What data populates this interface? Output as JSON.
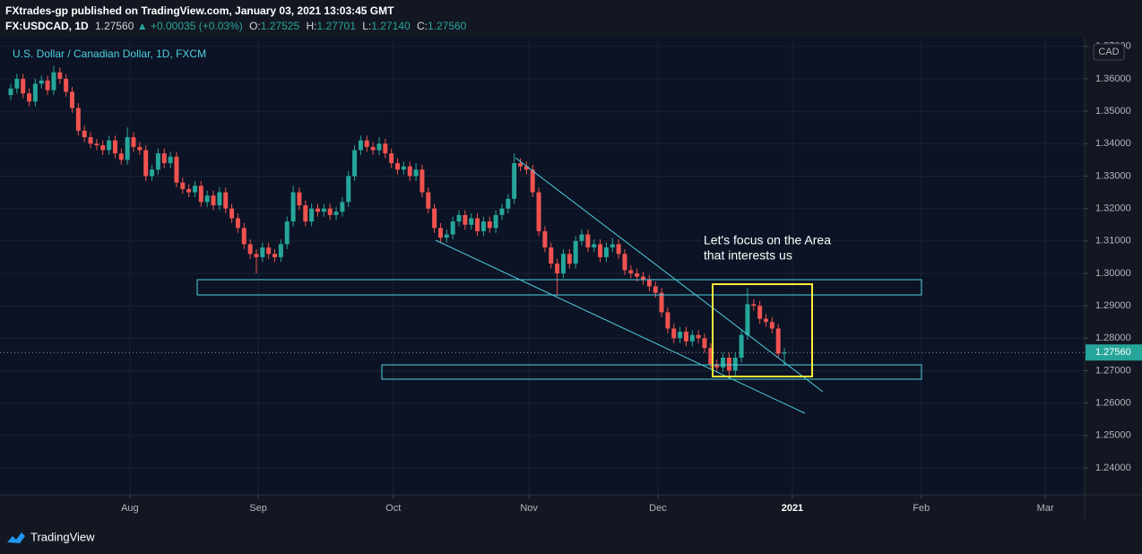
{
  "header": {
    "line1": "FXtrades-gp published on TradingView.com, January 03, 2021 13:03:45 GMT",
    "symbol": "FX:USDCAD, 1D",
    "last": "1.27560",
    "arrow": "▲",
    "change": "+0.00035 (+0.03%)",
    "o_label": "O:",
    "o": "1.27525",
    "h_label": "H:",
    "h": "1.27701",
    "l_label": "L:",
    "l": "1.27140",
    "c_label": "C:",
    "c": "1.27560"
  },
  "chart_data": {
    "type": "candlestick",
    "legend": "U.S. Dollar / Canadian Dollar, 1D, FXCM",
    "currency": "CAD",
    "last_price_label": "1.27560",
    "annotation": [
      "Let's focus on the Area",
      "that interests us"
    ],
    "up_color": "#26a69a",
    "down_color": "#ef5350",
    "xlim": [
      -1.75,
      174.9
    ],
    "xticks": [
      {
        "value": 19.4,
        "label": "Aug"
      },
      {
        "value": 40.3,
        "label": "Sep"
      },
      {
        "value": 62.3,
        "label": "Oct"
      },
      {
        "value": 84.4,
        "label": "Nov"
      },
      {
        "value": 105.4,
        "label": "Dec"
      },
      {
        "value": 127.3,
        "label": "2021"
      },
      {
        "value": 148.3,
        "label": "Feb"
      },
      {
        "value": 168.5,
        "label": "Mar"
      }
    ],
    "ylim": [
      1.2317,
      1.3727
    ],
    "yticks": [
      {
        "value": 1.24,
        "label": "1.24000"
      },
      {
        "value": 1.25,
        "label": "1.25000"
      },
      {
        "value": 1.26,
        "label": "1.26000"
      },
      {
        "value": 1.27,
        "label": "1.27000"
      },
      {
        "value": 1.28,
        "label": "1.28000"
      },
      {
        "value": 1.29,
        "label": "1.29000"
      },
      {
        "value": 1.3,
        "label": "1.30000"
      },
      {
        "value": 1.31,
        "label": "1.31000"
      },
      {
        "value": 1.32,
        "label": "1.32000"
      },
      {
        "value": 1.33,
        "label": "1.33000"
      },
      {
        "value": 1.34,
        "label": "1.34000"
      },
      {
        "value": 1.35,
        "label": "1.35000"
      },
      {
        "value": 1.36,
        "label": "1.36000"
      },
      {
        "value": 1.37,
        "label": "1.37000"
      }
    ],
    "grid": true,
    "candles": [
      [
        1.355,
        1.3585,
        1.3535,
        1.357
      ],
      [
        1.357,
        1.3615,
        1.3555,
        1.36
      ],
      [
        1.36,
        1.3615,
        1.354,
        1.3555
      ],
      [
        1.3555,
        1.357,
        1.3515,
        1.353
      ],
      [
        1.353,
        1.36,
        1.3515,
        1.3585
      ],
      [
        1.3585,
        1.361,
        1.357,
        1.3595
      ],
      [
        1.3595,
        1.361,
        1.355,
        1.3565
      ],
      [
        1.3565,
        1.364,
        1.355,
        1.362
      ],
      [
        1.362,
        1.3635,
        1.3585,
        1.36
      ],
      [
        1.36,
        1.3615,
        1.3545,
        1.356
      ],
      [
        1.356,
        1.3575,
        1.3495,
        1.351
      ],
      [
        1.351,
        1.3525,
        1.3425,
        1.344
      ],
      [
        1.344,
        1.3455,
        1.3405,
        1.342
      ],
      [
        1.342,
        1.3435,
        1.3385,
        1.34
      ],
      [
        1.34,
        1.3415,
        1.338,
        1.3395
      ],
      [
        1.3395,
        1.341,
        1.3365,
        1.338
      ],
      [
        1.338,
        1.3425,
        1.3365,
        1.341
      ],
      [
        1.341,
        1.3425,
        1.3355,
        1.337
      ],
      [
        1.337,
        1.3385,
        1.3335,
        1.335
      ],
      [
        1.335,
        1.345,
        1.3335,
        1.342
      ],
      [
        1.342,
        1.3435,
        1.3375,
        1.339
      ],
      [
        1.339,
        1.3405,
        1.3365,
        1.338
      ],
      [
        1.338,
        1.3395,
        1.3285,
        1.33
      ],
      [
        1.33,
        1.3335,
        1.3285,
        1.332
      ],
      [
        1.332,
        1.3385,
        1.3305,
        1.337
      ],
      [
        1.337,
        1.3385,
        1.3325,
        1.334
      ],
      [
        1.334,
        1.3375,
        1.3325,
        1.336
      ],
      [
        1.336,
        1.3375,
        1.3265,
        1.328
      ],
      [
        1.328,
        1.3295,
        1.3245,
        1.326
      ],
      [
        1.326,
        1.3275,
        1.3235,
        1.325
      ],
      [
        1.325,
        1.3285,
        1.3235,
        1.327
      ],
      [
        1.327,
        1.3285,
        1.3205,
        1.322
      ],
      [
        1.322,
        1.3255,
        1.3205,
        1.324
      ],
      [
        1.324,
        1.3255,
        1.3195,
        1.321
      ],
      [
        1.321,
        1.3265,
        1.3195,
        1.325
      ],
      [
        1.325,
        1.3265,
        1.3185,
        1.32
      ],
      [
        1.32,
        1.3215,
        1.3155,
        1.317
      ],
      [
        1.317,
        1.3185,
        1.3125,
        1.314
      ],
      [
        1.314,
        1.3155,
        1.3075,
        1.309
      ],
      [
        1.309,
        1.3105,
        1.3045,
        1.306
      ],
      [
        1.306,
        1.3075,
        1.3,
        1.305
      ],
      [
        1.305,
        1.3095,
        1.3035,
        1.308
      ],
      [
        1.308,
        1.3095,
        1.3045,
        1.306
      ],
      [
        1.306,
        1.3075,
        1.3035,
        1.305
      ],
      [
        1.305,
        1.3105,
        1.3035,
        1.309
      ],
      [
        1.309,
        1.3175,
        1.3075,
        1.316
      ],
      [
        1.316,
        1.327,
        1.3145,
        1.325
      ],
      [
        1.325,
        1.3265,
        1.3195,
        1.321
      ],
      [
        1.321,
        1.3225,
        1.3145,
        1.316
      ],
      [
        1.316,
        1.3215,
        1.3145,
        1.32
      ],
      [
        1.32,
        1.3215,
        1.3175,
        1.319
      ],
      [
        1.319,
        1.3215,
        1.3175,
        1.32
      ],
      [
        1.32,
        1.3215,
        1.3165,
        1.318
      ],
      [
        1.318,
        1.3205,
        1.3165,
        1.319
      ],
      [
        1.319,
        1.3235,
        1.3175,
        1.322
      ],
      [
        1.322,
        1.3315,
        1.3205,
        1.33
      ],
      [
        1.33,
        1.3395,
        1.3285,
        1.338
      ],
      [
        1.338,
        1.3425,
        1.3365,
        1.341
      ],
      [
        1.341,
        1.3425,
        1.3375,
        1.339
      ],
      [
        1.339,
        1.3405,
        1.3365,
        1.338
      ],
      [
        1.338,
        1.342,
        1.3365,
        1.34
      ],
      [
        1.34,
        1.3415,
        1.3355,
        1.337
      ],
      [
        1.337,
        1.3385,
        1.3325,
        1.334
      ],
      [
        1.334,
        1.3355,
        1.3305,
        1.332
      ],
      [
        1.332,
        1.3345,
        1.3305,
        1.333
      ],
      [
        1.333,
        1.3345,
        1.3285,
        1.33
      ],
      [
        1.33,
        1.334,
        1.3285,
        1.332
      ],
      [
        1.332,
        1.3335,
        1.3235,
        1.325
      ],
      [
        1.325,
        1.3265,
        1.3185,
        1.32
      ],
      [
        1.32,
        1.3215,
        1.3125,
        1.314
      ],
      [
        1.314,
        1.3155,
        1.3095,
        1.311
      ],
      [
        1.311,
        1.3135,
        1.3095,
        1.312
      ],
      [
        1.312,
        1.3175,
        1.3105,
        1.316
      ],
      [
        1.316,
        1.3195,
        1.3145,
        1.318
      ],
      [
        1.318,
        1.3195,
        1.3135,
        1.315
      ],
      [
        1.315,
        1.3185,
        1.3135,
        1.317
      ],
      [
        1.317,
        1.3185,
        1.3115,
        1.313
      ],
      [
        1.313,
        1.3175,
        1.3115,
        1.316
      ],
      [
        1.316,
        1.3175,
        1.3125,
        1.314
      ],
      [
        1.314,
        1.3195,
        1.3125,
        1.318
      ],
      [
        1.318,
        1.3215,
        1.3165,
        1.32
      ],
      [
        1.32,
        1.3245,
        1.3185,
        1.323
      ],
      [
        1.323,
        1.337,
        1.3215,
        1.334
      ],
      [
        1.334,
        1.3355,
        1.3315,
        1.333
      ],
      [
        1.333,
        1.3345,
        1.3305,
        1.332
      ],
      [
        1.332,
        1.3335,
        1.3235,
        1.325
      ],
      [
        1.325,
        1.3265,
        1.3115,
        1.313
      ],
      [
        1.313,
        1.3145,
        1.3065,
        1.308
      ],
      [
        1.308,
        1.3095,
        1.3015,
        1.303
      ],
      [
        1.303,
        1.3045,
        1.293,
        1.3
      ],
      [
        1.3,
        1.3075,
        1.2985,
        1.306
      ],
      [
        1.306,
        1.3075,
        1.3015,
        1.303
      ],
      [
        1.303,
        1.3115,
        1.3015,
        1.31
      ],
      [
        1.31,
        1.3135,
        1.3085,
        1.312
      ],
      [
        1.312,
        1.3135,
        1.3065,
        1.308
      ],
      [
        1.308,
        1.3105,
        1.3065,
        1.309
      ],
      [
        1.309,
        1.3105,
        1.3035,
        1.305
      ],
      [
        1.305,
        1.3095,
        1.3035,
        1.308
      ],
      [
        1.308,
        1.311,
        1.3065,
        1.309
      ],
      [
        1.309,
        1.3105,
        1.3045,
        1.306
      ],
      [
        1.306,
        1.3075,
        1.2995,
        1.301
      ],
      [
        1.301,
        1.3025,
        1.2985,
        1.3
      ],
      [
        1.3,
        1.3015,
        1.2975,
        1.299
      ],
      [
        1.299,
        1.3005,
        1.2965,
        1.298
      ],
      [
        1.298,
        1.2995,
        1.2945,
        1.296
      ],
      [
        1.296,
        1.2975,
        1.2925,
        1.294
      ],
      [
        1.294,
        1.2955,
        1.2865,
        1.288
      ],
      [
        1.288,
        1.2895,
        1.2815,
        1.283
      ],
      [
        1.283,
        1.2845,
        1.2785,
        1.28
      ],
      [
        1.28,
        1.2835,
        1.2785,
        1.282
      ],
      [
        1.282,
        1.2835,
        1.2775,
        1.279
      ],
      [
        1.279,
        1.2825,
        1.2775,
        1.281
      ],
      [
        1.281,
        1.2825,
        1.2785,
        1.28
      ],
      [
        1.28,
        1.2815,
        1.2755,
        1.277
      ],
      [
        1.277,
        1.2785,
        1.2705,
        1.272
      ],
      [
        1.272,
        1.2735,
        1.2695,
        1.271
      ],
      [
        1.271,
        1.2755,
        1.2695,
        1.274
      ],
      [
        1.274,
        1.2755,
        1.2685,
        1.27
      ],
      [
        1.27,
        1.2755,
        1.2685,
        1.274
      ],
      [
        1.274,
        1.2825,
        1.2725,
        1.281
      ],
      [
        1.281,
        1.2955,
        1.2795,
        1.2905
      ],
      [
        1.2905,
        1.292,
        1.2885,
        1.29
      ],
      [
        1.29,
        1.2915,
        1.2845,
        1.286
      ],
      [
        1.286,
        1.2875,
        1.2835,
        1.285
      ],
      [
        1.285,
        1.2865,
        1.2815,
        1.283
      ],
      [
        1.283,
        1.2845,
        1.274,
        1.27525
      ],
      [
        1.27525,
        1.27701,
        1.2714,
        1.2756
      ]
    ]
  },
  "footer": {
    "brand": "TradingView"
  }
}
